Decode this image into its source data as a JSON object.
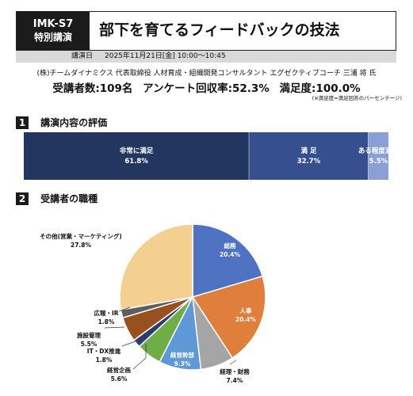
{
  "header": {
    "code": "IMK-S7",
    "category": "特別講演",
    "title": "部下を育てるフィードバックの技法",
    "date_label": "講演日",
    "date_value": "2025年11月21日[金] 10:00〜10:45"
  },
  "speaker": "(株)チームダイナミクス 代表取締役 人材育成・組織開発コンサルタント エグゼクティブコーチ 三浦 将 氏",
  "stats": {
    "attendees": "受講者数:109名",
    "response_rate": "アンケート回収率:52.3%",
    "satisfaction": "満足度:100.0%"
  },
  "note": "(※満足度=満足回答のパーセンテージ)",
  "section1": {
    "num": "1",
    "title": "講演内容の評価"
  },
  "section2": {
    "num": "2",
    "title": "受講者の職種"
  },
  "chart_data": [
    {
      "type": "bar",
      "orientation": "horizontal-stacked",
      "series": [
        {
          "name": "非常に満足",
          "value": 61.8,
          "value_label": "61.8%",
          "color": "#223660"
        },
        {
          "name": "満 足",
          "value": 32.7,
          "value_label": "32.7%",
          "color": "#354f8f"
        },
        {
          "name": "ある程度満足",
          "value": 5.5,
          "value_label": "5.5%",
          "color": "#8a9fd6"
        }
      ]
    },
    {
      "type": "pie",
      "slices": [
        {
          "label": "総務",
          "value": 20.4,
          "value_label": "20.4%",
          "color": "#4f72c3"
        },
        {
          "label": "人事",
          "value": 20.4,
          "value_label": "20.4%",
          "color": "#e07e3c"
        },
        {
          "label": "経理・財務",
          "value": 7.4,
          "value_label": "7.4%",
          "color": "#a5a5a5"
        },
        {
          "label": "経営幹部",
          "value": 9.3,
          "value_label": "9.3%",
          "color": "#5e98d6"
        },
        {
          "label": "経営企画",
          "value": 5.6,
          "value_label": "5.6%",
          "color": "#6fae46"
        },
        {
          "label": "IT・DX推進",
          "value": 1.8,
          "value_label": "1.8%",
          "color": "#2a3e70"
        },
        {
          "label": "施設管理",
          "value": 5.5,
          "value_label": "5.5%",
          "color": "#99501f"
        },
        {
          "label": "広報・IR",
          "value": 1.8,
          "value_label": "1.8%",
          "color": "#5e5e5e"
        },
        {
          "label": "その他(営業・マーケティング)",
          "value": 27.8,
          "value_label": "27.8%",
          "color": "#f3d08f"
        }
      ]
    }
  ]
}
